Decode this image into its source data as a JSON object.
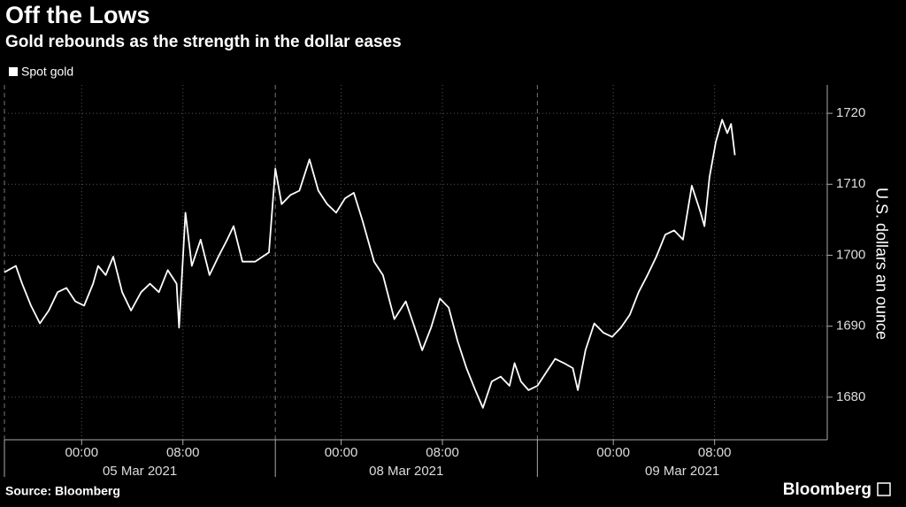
{
  "chart_data": {
    "type": "line",
    "title": "Off the Lows",
    "subtitle": "Gold rebounds as the strength in the dollar eases",
    "y_label": "U.S. dollars an ounce",
    "source": "Source: Bloomberg",
    "brand": "Bloomberg",
    "grid": true,
    "legend": "top-left",
    "xlim": [
      0,
      65
    ],
    "ylim": [
      1674,
      1724
    ],
    "yticks": [
      1680,
      1690,
      1700,
      1710,
      1720
    ],
    "xticks": [
      {
        "value": 6.1,
        "label": "00:00"
      },
      {
        "value": 14.1,
        "label": "08:00"
      },
      {
        "value": 26.6,
        "label": "00:00"
      },
      {
        "value": 34.6,
        "label": "08:00"
      },
      {
        "value": 48.1,
        "label": "00:00"
      },
      {
        "value": 56.1,
        "label": "08:00"
      }
    ],
    "sessions": [
      {
        "label": "05 Mar 2021",
        "start": 0,
        "end": 21.4
      },
      {
        "label": "08 Mar 2021",
        "start": 21.4,
        "end": 42.1
      },
      {
        "label": "09 Mar 2021",
        "start": 42.1,
        "end": 65
      }
    ],
    "x": [
      0,
      0.9,
      1.4,
      2.1,
      2.8,
      3.5,
      4.2,
      4.9,
      5.6,
      6.3,
      7.0,
      7.4,
      8.0,
      8.6,
      9.3,
      10.0,
      10.8,
      11.5,
      12.2,
      12.9,
      13.6,
      13.8,
      14.3,
      14.8,
      15.5,
      16.2,
      16.9,
      17.6,
      18.1,
      18.8,
      19.8,
      20.9,
      21.4,
      21.9,
      22.6,
      23.3,
      24.1,
      24.8,
      25.5,
      26.2,
      26.9,
      27.6,
      28.3,
      29.2,
      29.9,
      30.8,
      31.7,
      32.3,
      33.0,
      33.7,
      34.4,
      35.1,
      35.8,
      36.5,
      37.2,
      37.8,
      38.5,
      39.2,
      39.9,
      40.3,
      40.8,
      41.4,
      42.1,
      42.8,
      43.5,
      44.2,
      44.9,
      45.3,
      45.9,
      46.6,
      47.3,
      48.0,
      48.7,
      49.4,
      50.1,
      50.8,
      51.5,
      52.2,
      52.9,
      53.6,
      54.3,
      55.0,
      55.3,
      55.7,
      56.2,
      56.7,
      57.1,
      57.4,
      57.7
    ],
    "series": [
      {
        "name": "Spot gold",
        "color": "#ffffff",
        "values": [
          1697.6,
          1698.5,
          1696,
          1692.9,
          1690.4,
          1692.2,
          1694.8,
          1695.4,
          1693.5,
          1692.9,
          1696,
          1698.5,
          1697.2,
          1699.8,
          1694.8,
          1692.2,
          1694.8,
          1696,
          1694.8,
          1697.9,
          1696,
          1689.8,
          1706,
          1698.5,
          1702.2,
          1697.2,
          1699.8,
          1702.2,
          1704.1,
          1699.1,
          1699.1,
          1700.4,
          1712.2,
          1707.2,
          1708.5,
          1709.1,
          1713.5,
          1709.1,
          1707.2,
          1706,
          1708,
          1708.8,
          1704.8,
          1699.1,
          1697.2,
          1691,
          1693.5,
          1690.4,
          1686.6,
          1689.8,
          1693.9,
          1692.6,
          1687.9,
          1684.1,
          1681,
          1678.5,
          1682.2,
          1682.9,
          1681.6,
          1684.8,
          1682.2,
          1681,
          1681.6,
          1683.5,
          1685.4,
          1684.8,
          1684.1,
          1681,
          1686.6,
          1690.4,
          1689.1,
          1688.5,
          1689.8,
          1691.6,
          1694.8,
          1697.2,
          1699.8,
          1702.9,
          1703.5,
          1702.2,
          1709.8,
          1706,
          1704.1,
          1711,
          1716,
          1719.1,
          1717.2,
          1718.5,
          1714.1
        ]
      }
    ]
  }
}
